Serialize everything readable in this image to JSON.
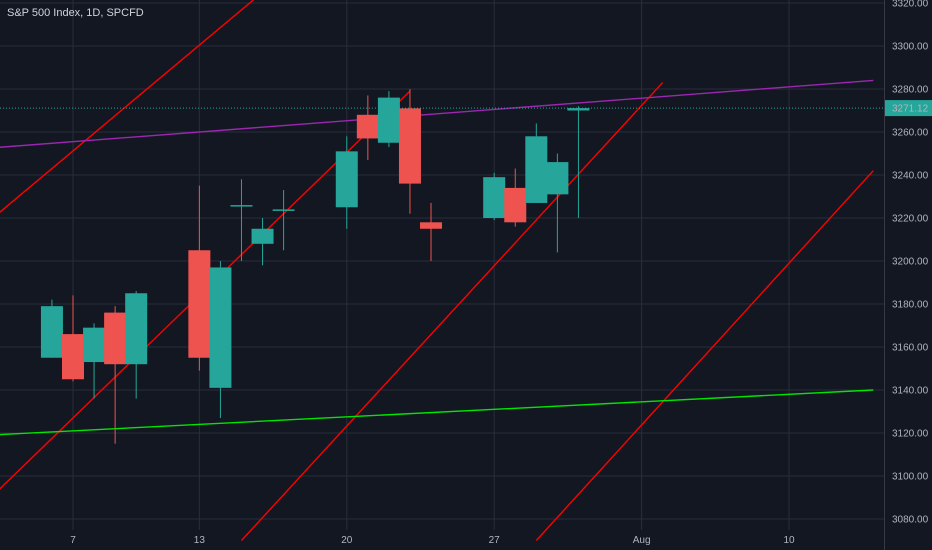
{
  "header": {
    "title": "S&P 500 Index, 1D, SPCFD"
  },
  "colors": {
    "background": "#131722",
    "grid": "#2a2e39",
    "up": "#26a69a",
    "down": "#ef5350",
    "channel": "#ff0000",
    "resistance": "#9c27b0",
    "support": "#00e600",
    "price_label_bg": "#26a69a"
  },
  "chart_data": {
    "type": "candlestick",
    "title": "S&P 500 Index, 1D, SPCFD",
    "ylim": [
      3070,
      3330
    ],
    "grid": true,
    "y_ticks": [
      3080,
      3100,
      3120,
      3140,
      3160,
      3180,
      3200,
      3220,
      3240,
      3260,
      3280,
      3300,
      3320
    ],
    "x_ticks": [
      {
        "label": "7",
        "date": "2020-07-07"
      },
      {
        "label": "13",
        "date": "2020-07-13"
      },
      {
        "label": "20",
        "date": "2020-07-20"
      },
      {
        "label": "27",
        "date": "2020-07-27"
      },
      {
        "label": "Aug",
        "date": "2020-08-03"
      },
      {
        "label": "10",
        "date": "2020-08-10"
      }
    ],
    "last_price": {
      "label": "3271.12",
      "value": 3271.12
    },
    "candles": [
      {
        "date": "2020-07-02",
        "open": 3143,
        "high": 3165,
        "low": 3124,
        "close": 3130
      },
      {
        "date": "2020-07-06",
        "open": 3155,
        "high": 3182,
        "low": 3155,
        "close": 3179
      },
      {
        "date": "2020-07-07",
        "open": 3166,
        "high": 3184,
        "low": 3144,
        "close": 3145
      },
      {
        "date": "2020-07-08",
        "open": 3153,
        "high": 3171,
        "low": 3136,
        "close": 3169
      },
      {
        "date": "2020-07-09",
        "open": 3176,
        "high": 3179,
        "low": 3115,
        "close": 3152
      },
      {
        "date": "2020-07-10",
        "open": 3152,
        "high": 3186,
        "low": 3136,
        "close": 3185
      },
      {
        "date": "2020-07-13",
        "open": 3205,
        "high": 3235,
        "low": 3149,
        "close": 3155
      },
      {
        "date": "2020-07-14",
        "open": 3141,
        "high": 3200,
        "low": 3127,
        "close": 3197
      },
      {
        "date": "2020-07-15",
        "open": 3226,
        "high": 3238,
        "low": 3200,
        "close": 3226
      },
      {
        "date": "2020-07-16",
        "open": 3208,
        "high": 3220,
        "low": 3198,
        "close": 3215
      },
      {
        "date": "2020-07-17",
        "open": 3224,
        "high": 3233,
        "low": 3205,
        "close": 3224
      },
      {
        "date": "2020-07-20",
        "open": 3225,
        "high": 3258,
        "low": 3215,
        "close": 3251
      },
      {
        "date": "2020-07-21",
        "open": 3268,
        "high": 3277,
        "low": 3247,
        "close": 3257
      },
      {
        "date": "2020-07-22",
        "open": 3255,
        "high": 3279,
        "low": 3253,
        "close": 3276
      },
      {
        "date": "2020-07-23",
        "open": 3271,
        "high": 3280,
        "low": 3222,
        "close": 3236
      },
      {
        "date": "2020-07-24",
        "open": 3218,
        "high": 3227,
        "low": 3200,
        "close": 3215
      },
      {
        "date": "2020-07-27",
        "open": 3220,
        "high": 3241,
        "low": 3219,
        "close": 3239
      },
      {
        "date": "2020-07-28",
        "open": 3234,
        "high": 3243,
        "low": 3216,
        "close": 3218
      },
      {
        "date": "2020-07-29",
        "open": 3227,
        "high": 3264,
        "low": 3227,
        "close": 3258
      },
      {
        "date": "2020-07-30",
        "open": 3231,
        "high": 3250,
        "low": 3204,
        "close": 3246
      },
      {
        "date": "2020-07-31",
        "open": 3270,
        "high": 3272,
        "low": 3220,
        "close": 3271.12
      }
    ],
    "trendlines": [
      {
        "name": "",
        "role": "channel",
        "p1": {
          "date": "2020-07-01",
          "value": 3202
        },
        "p2": {
          "date": "2020-07-21",
          "value": 3366
        }
      },
      {
        "name": "",
        "role": "channel",
        "p1": {
          "date": "2020-07-01",
          "value": 3070
        },
        "p2": {
          "date": "2020-07-23",
          "value": 3279
        }
      },
      {
        "name": "",
        "role": "channel",
        "p1": {
          "date": "2020-07-15",
          "value": 3070
        },
        "p2": {
          "date": "2020-08-04",
          "value": 3283
        }
      },
      {
        "name": "",
        "role": "channel",
        "p1": {
          "date": "2020-07-29",
          "value": 3070
        },
        "p2": {
          "date": "2020-08-14",
          "value": 3242
        }
      },
      {
        "name": "",
        "role": "resistance",
        "p1": {
          "date": "2020-07-01",
          "value": 3251
        },
        "p2": {
          "date": "2020-08-14",
          "value": 3284
        }
      },
      {
        "name": "",
        "role": "support",
        "p1": {
          "date": "2020-07-01",
          "value": 3118
        },
        "p2": {
          "date": "2020-08-14",
          "value": 3140
        }
      }
    ]
  }
}
